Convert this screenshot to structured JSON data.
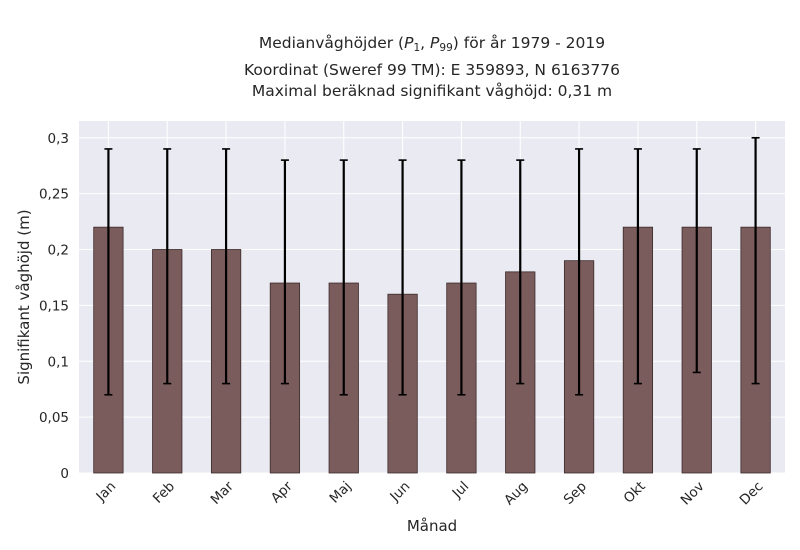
{
  "chart_data": {
    "type": "bar",
    "title_line1_prefix": "Medianvåghöjder (",
    "title_line1_p": "P",
    "title_line1_sub1": "1",
    "title_line1_sep": ", ",
    "title_line1_sub2": "99",
    "title_line1_suffix": ") för år 1979 - 2019",
    "title_line2": "Koordinat (Sweref 99 TM): E 359893, N 6163776",
    "title_line3": "Maximal beräknad signifikant våghöjd: 0,31 m",
    "xlabel": "Månad",
    "ylabel": "Signifikant våghöjd (m)",
    "categories": [
      "Jan",
      "Feb",
      "Mar",
      "Apr",
      "Maj",
      "Jun",
      "Jul",
      "Aug",
      "Sep",
      "Okt",
      "Nov",
      "Dec"
    ],
    "values": [
      0.22,
      0.2,
      0.2,
      0.17,
      0.17,
      0.16,
      0.17,
      0.18,
      0.19,
      0.22,
      0.22,
      0.22
    ],
    "error_low": [
      0.07,
      0.08,
      0.08,
      0.08,
      0.07,
      0.07,
      0.07,
      0.08,
      0.07,
      0.08,
      0.09,
      0.08
    ],
    "error_high": [
      0.29,
      0.29,
      0.29,
      0.28,
      0.28,
      0.28,
      0.28,
      0.28,
      0.29,
      0.29,
      0.29,
      0.3
    ],
    "yticks": [
      0,
      0.05,
      0.1,
      0.15,
      0.2,
      0.25,
      0.3
    ],
    "ytick_labels": [
      "0",
      "0,05",
      "0,1",
      "0,15",
      "0,2",
      "0,25",
      "0,3"
    ],
    "ylim": [
      0,
      0.315
    ],
    "grid": true,
    "colors": {
      "bar": "#7b5c5c",
      "bar_edge": "#3a2a2a",
      "errorbar": "#000000",
      "plot_bg": "#eaeaf2",
      "grid": "#ffffff"
    }
  }
}
